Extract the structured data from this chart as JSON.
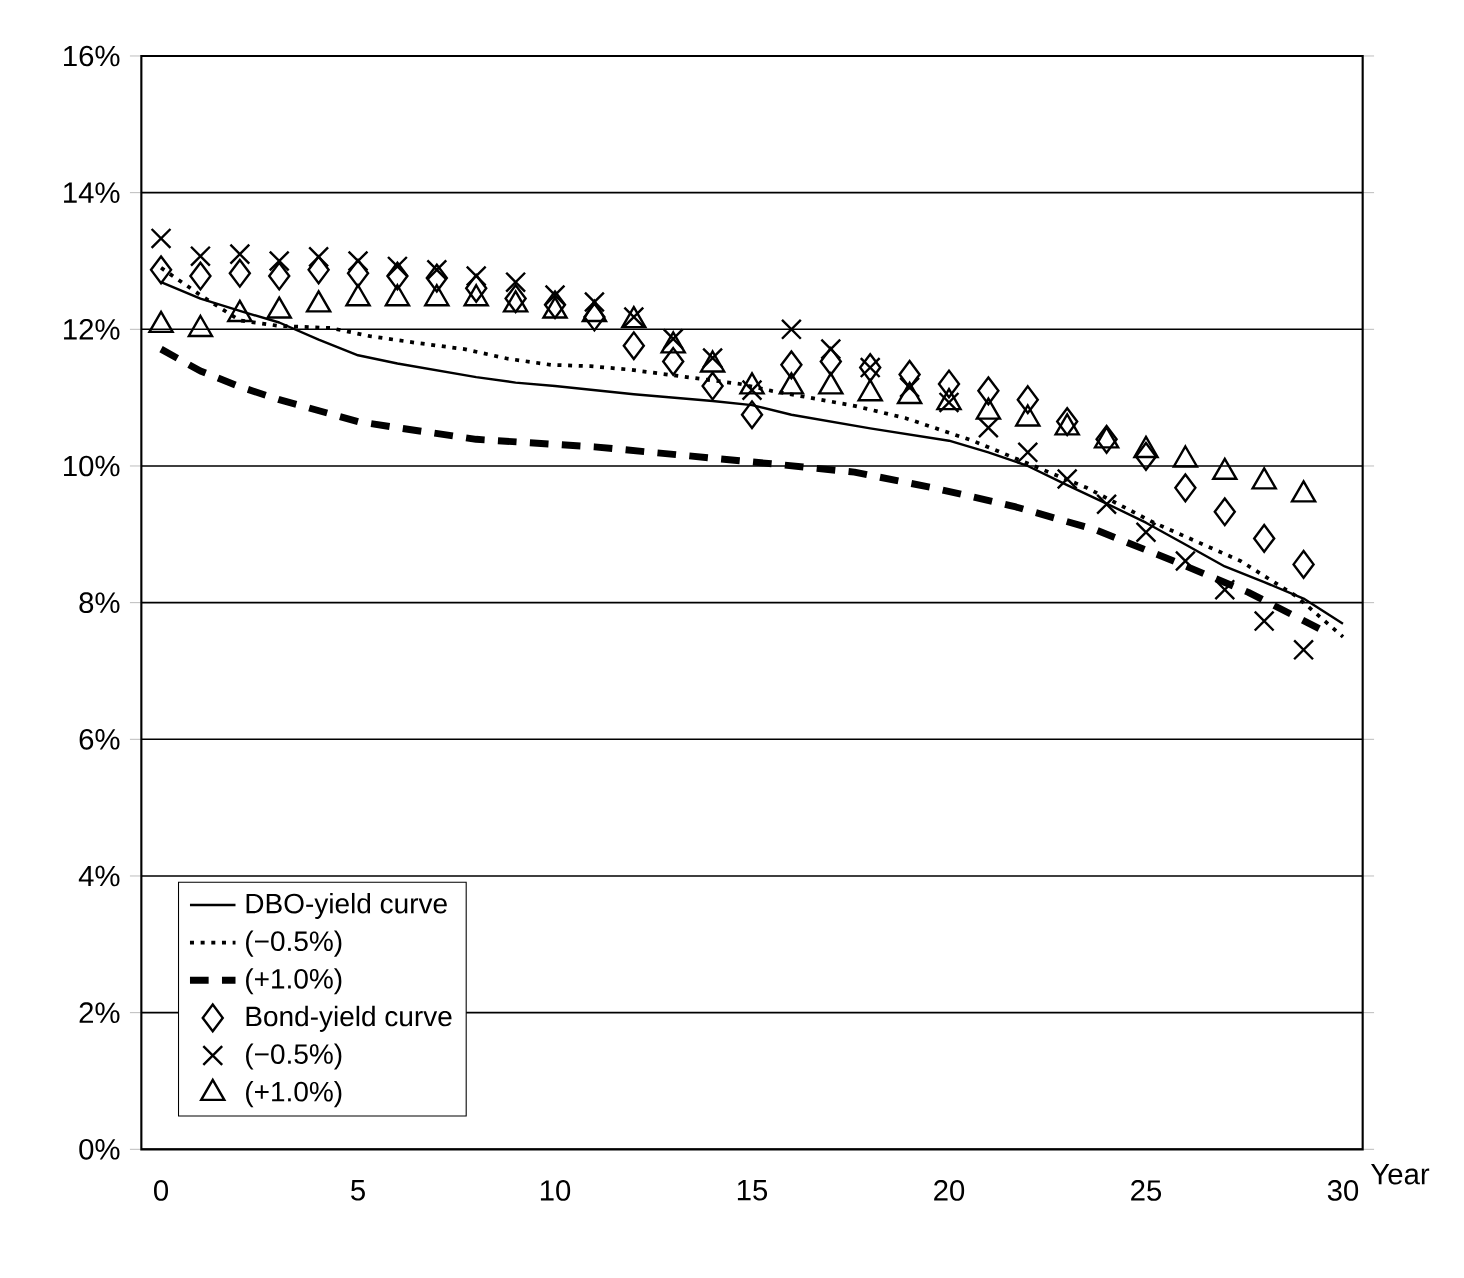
{
  "chart_data": {
    "type": "scatter",
    "xlabel": "Year",
    "xlim": [
      -0.5,
      30.5
    ],
    "xticks": [
      0,
      5,
      10,
      15,
      20,
      25,
      30
    ],
    "ylim": [
      0,
      16
    ],
    "yticks": [
      {
        "value": 0,
        "label": "0%"
      },
      {
        "value": 2,
        "label": "2%"
      },
      {
        "value": 4,
        "label": "4%"
      },
      {
        "value": 6,
        "label": "6%"
      },
      {
        "value": 8,
        "label": "8%"
      },
      {
        "value": 10,
        "label": "10%"
      },
      {
        "value": 12,
        "label": "12%"
      },
      {
        "value": 14,
        "label": "14%"
      },
      {
        "value": 16,
        "label": "16%"
      }
    ],
    "grid": "y",
    "legend": "bottom left",
    "series": [
      {
        "name": "DBO-yield curve",
        "type": "line",
        "line_style": "solid",
        "color": "#000000",
        "x": [
          0,
          1,
          2,
          3,
          4,
          5,
          6,
          7,
          8,
          9,
          10,
          12,
          14,
          15,
          16,
          18,
          20,
          21,
          22,
          23,
          24,
          25,
          26,
          27,
          28,
          29,
          30
        ],
        "values": [
          12.69,
          12.45,
          12.27,
          12.1,
          11.85,
          11.62,
          11.5,
          11.4,
          11.3,
          11.22,
          11.17,
          11.05,
          10.95,
          10.89,
          10.75,
          10.55,
          10.37,
          10.2,
          10.0,
          9.72,
          9.45,
          9.17,
          8.85,
          8.53,
          8.3,
          8.06,
          7.69
        ]
      },
      {
        "name": "(−0.5%)",
        "type": "line",
        "line_style": "dotted",
        "color": "#000000",
        "x": [
          0,
          1,
          2,
          3,
          4.3,
          5.3,
          6.5,
          7.7,
          8.8,
          9.9,
          10.9,
          11.9,
          14.7,
          15.5,
          17.6,
          18.9,
          20.6,
          23.5,
          25.2,
          27.4,
          28.8,
          30
        ],
        "values": [
          12.9,
          12.5,
          12.13,
          12.05,
          12.02,
          11.9,
          11.8,
          11.71,
          11.57,
          11.48,
          11.46,
          11.41,
          11.2,
          11.1,
          10.88,
          10.7,
          10.37,
          9.68,
          9.17,
          8.61,
          8.1,
          7.5
        ]
      },
      {
        "name": "(+1.0%)",
        "type": "line",
        "line_style": "dashed",
        "color": "#000000",
        "x": [
          0,
          1,
          2,
          3,
          4,
          5,
          6,
          8,
          11,
          13,
          15,
          15.7,
          17.6,
          19.6,
          21.7,
          23.7,
          25.7,
          27.6,
          29.6
        ],
        "values": [
          11.71,
          11.39,
          11.16,
          10.97,
          10.81,
          10.65,
          10.56,
          10.39,
          10.28,
          10.17,
          10.06,
          10.02,
          9.91,
          9.68,
          9.4,
          9.07,
          8.61,
          8.15,
          7.56
        ]
      },
      {
        "name": "Bond-yield curve",
        "marker": "diamond",
        "color": "#000000",
        "x": [
          0,
          1,
          2,
          3,
          4,
          5,
          6,
          7,
          8,
          9,
          10,
          11,
          12,
          13,
          14,
          15,
          16,
          17,
          18,
          19,
          20,
          21,
          22,
          23,
          24,
          25,
          26,
          27,
          28,
          29
        ],
        "values": [
          12.87,
          12.78,
          12.82,
          12.78,
          12.87,
          12.82,
          12.78,
          12.75,
          12.6,
          12.45,
          12.36,
          12.18,
          11.76,
          11.53,
          11.17,
          10.75,
          11.48,
          11.53,
          11.44,
          11.34,
          11.2,
          11.1,
          10.97,
          10.65,
          10.39,
          10.14,
          9.68,
          9.33,
          8.94,
          8.56
        ]
      },
      {
        "name": "(−0.5%)",
        "marker": "cross",
        "color": "#000000",
        "x": [
          0,
          1,
          2,
          3,
          4,
          5,
          6,
          7,
          8,
          9,
          10,
          11,
          12,
          13,
          14,
          15,
          16,
          17,
          18,
          19,
          20,
          21,
          22,
          23,
          24,
          25,
          26,
          27,
          28,
          29
        ],
        "values": [
          13.33,
          13.07,
          13.1,
          13.0,
          13.06,
          13.0,
          12.92,
          12.87,
          12.78,
          12.69,
          12.5,
          12.4,
          12.18,
          11.86,
          11.58,
          11.11,
          12.0,
          11.71,
          11.44,
          11.15,
          10.93,
          10.56,
          10.2,
          9.81,
          9.44,
          9.03,
          8.61,
          8.19,
          7.73,
          7.31
        ]
      },
      {
        "name": "(+1.0%)",
        "marker": "triangle",
        "color": "#000000",
        "x": [
          0,
          1,
          2,
          3,
          4,
          5,
          6,
          7,
          8,
          9,
          10,
          11,
          12,
          13,
          14,
          15,
          16,
          17,
          18,
          19,
          20,
          21,
          22,
          23,
          24,
          25,
          26,
          27,
          28,
          29
        ],
        "values": [
          12.06,
          12.0,
          12.22,
          12.27,
          12.36,
          12.45,
          12.45,
          12.45,
          12.45,
          12.36,
          12.27,
          12.22,
          12.13,
          11.76,
          11.48,
          11.16,
          11.16,
          11.16,
          11.06,
          11.02,
          10.93,
          10.79,
          10.69,
          10.56,
          10.37,
          10.23,
          10.09,
          9.91,
          9.77,
          9.58
        ]
      }
    ]
  }
}
